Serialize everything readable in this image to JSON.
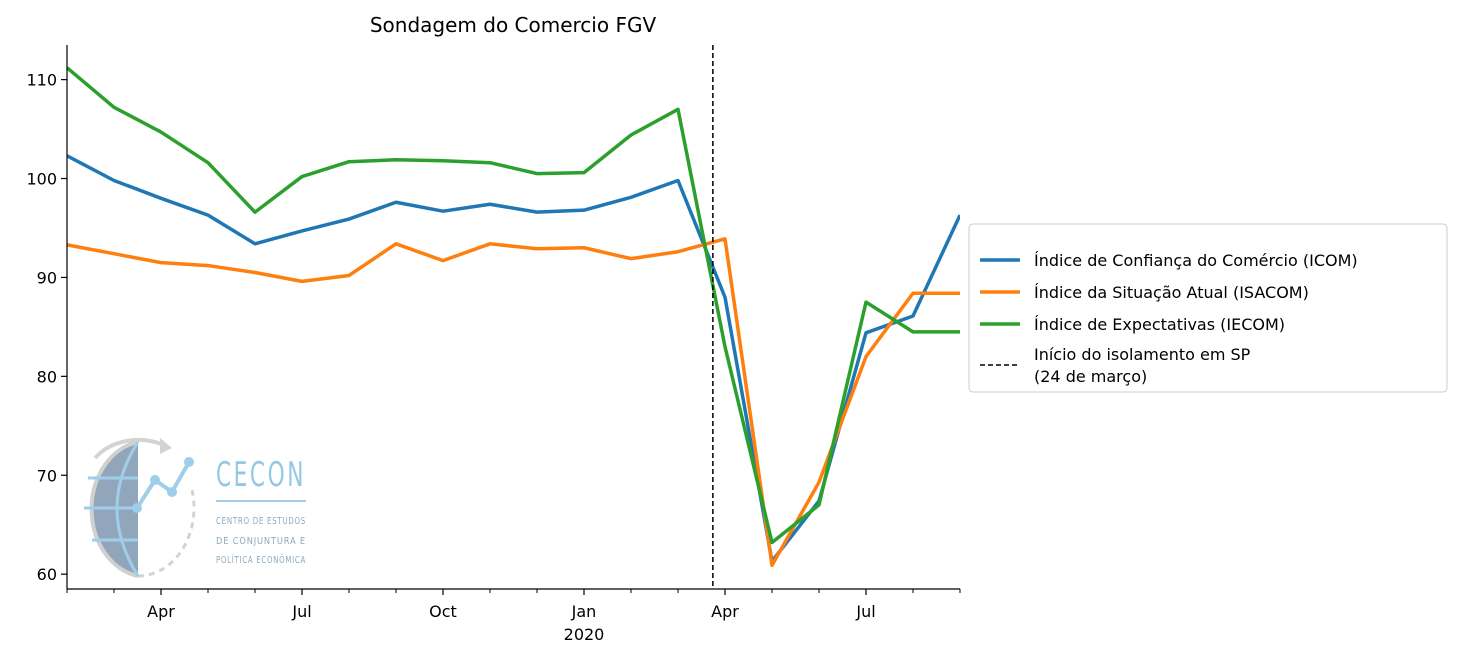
{
  "chart_data": {
    "type": "line",
    "title": "Sondagem do Comercio FGV",
    "xlabel": "",
    "ylabel": "",
    "x": [
      "2019-02",
      "2019-03",
      "2019-04",
      "2019-05",
      "2019-06",
      "2019-07",
      "2019-08",
      "2019-09",
      "2019-10",
      "2019-11",
      "2019-12",
      "2020-01",
      "2020-02",
      "2020-03",
      "2020-04",
      "2020-05",
      "2020-06",
      "2020-07",
      "2020-08",
      "2020-09"
    ],
    "xlim": [
      "2019-02",
      "2020-09"
    ],
    "ylim": [
      58.5,
      113.5
    ],
    "yticks": [
      60,
      70,
      80,
      90,
      100,
      110
    ],
    "xticks": [
      {
        "x": "2019-04",
        "label": "Apr"
      },
      {
        "x": "2019-07",
        "label": "Jul"
      },
      {
        "x": "2019-10",
        "label": "Oct"
      },
      {
        "x": "2020-01",
        "label": "Jan",
        "sublabel": "2020"
      },
      {
        "x": "2020-04",
        "label": "Apr"
      },
      {
        "x": "2020-07",
        "label": "Jul"
      }
    ],
    "minor_xticks": [
      "2019-02",
      "2019-03",
      "2019-05",
      "2019-06",
      "2019-08",
      "2019-09",
      "2019-11",
      "2019-12",
      "2020-02",
      "2020-03",
      "2020-05",
      "2020-06",
      "2020-08",
      "2020-09"
    ],
    "series": [
      {
        "name": "Índice de Confiança do Comércio (ICOM)",
        "color": "#1f77b4",
        "values": [
          102.3,
          99.8,
          98.0,
          96.3,
          93.4,
          94.7,
          95.9,
          97.6,
          96.7,
          97.4,
          96.6,
          96.8,
          98.1,
          99.8,
          88.0,
          61.3,
          67.4,
          84.4,
          86.1,
          96.3
        ]
      },
      {
        "name": "Índice da Situação Atual (ISACOM)",
        "color": "#ff7f0e",
        "values": [
          93.3,
          92.4,
          91.5,
          91.2,
          90.5,
          89.6,
          90.2,
          93.4,
          91.7,
          93.4,
          92.9,
          93.0,
          91.9,
          92.6,
          93.9,
          60.9,
          69.3,
          82.0,
          88.4,
          88.4
        ]
      },
      {
        "name": "Índice de Expectativas (IECOM)",
        "color": "#2ca02c",
        "values": [
          111.2,
          107.2,
          104.7,
          101.6,
          96.6,
          100.2,
          101.7,
          101.9,
          101.8,
          101.6,
          100.5,
          100.6,
          104.4,
          107.0,
          83.0,
          63.2,
          67.0,
          87.5,
          84.5,
          84.5
        ]
      }
    ],
    "vline": {
      "x": "2020-03-24",
      "label_line1": "Início do isolamento em SP",
      "label_line2": "(24 de março)",
      "color": "#000000"
    },
    "grid": false,
    "legend_position": "right"
  },
  "logo": {
    "title": "CECON",
    "line1": "CENTRO DE ESTUDOS",
    "line2": "DE CONJUNTURA E",
    "line3": "POLÍTICA ECONÔMICA"
  }
}
